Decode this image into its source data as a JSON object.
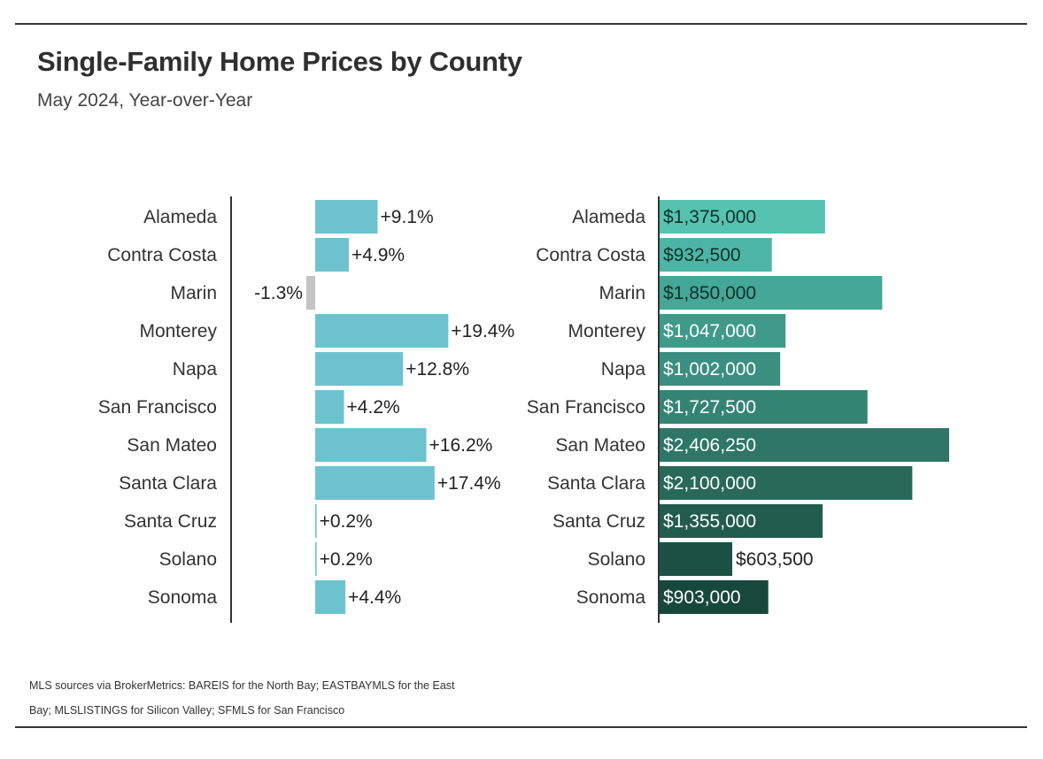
{
  "header": {
    "title": "Single-Family Home Prices by County",
    "subtitle": "May 2024, Year-over-Year"
  },
  "footer": {
    "source_line1": "MLS sources via BrokerMetrics: BAREIS for the North Bay; EASTBAYMLS for the East",
    "source_line2": "Bay; MLSLISTINGS for Silicon Valley; SFMLS for San Francisco"
  },
  "chart_data": [
    {
      "type": "bar",
      "orientation": "horizontal",
      "title": "",
      "categories": [
        "Alameda",
        "Contra Costa",
        "Marin",
        "Monterey",
        "Napa",
        "San Francisco",
        "San Mateo",
        "Santa Clara",
        "Santa Cruz",
        "Solano",
        "Sonoma"
      ],
      "values": [
        9.1,
        4.9,
        -1.3,
        19.4,
        12.8,
        4.2,
        16.2,
        17.4,
        0.2,
        0.2,
        4.4
      ],
      "data_labels": [
        "+9.1%",
        "+4.9%",
        "-1.3%",
        "+19.4%",
        "+12.8%",
        "+4.2%",
        "+16.2%",
        "+17.4%",
        "+0.2%",
        "+0.2%",
        "+4.4%"
      ],
      "unit": "%",
      "colors": {
        "positive": "#6cc3cf",
        "negative": "#c4c4c4"
      },
      "grid": false
    },
    {
      "type": "bar",
      "orientation": "horizontal",
      "title": "",
      "categories": [
        "Alameda",
        "Contra Costa",
        "Marin",
        "Monterey",
        "Napa",
        "San Francisco",
        "San Mateo",
        "Santa Clara",
        "Santa Cruz",
        "Solano",
        "Sonoma"
      ],
      "values": [
        1375000,
        932500,
        1850000,
        1047000,
        1002000,
        1727500,
        2406250,
        2100000,
        1355000,
        603500,
        903000
      ],
      "data_labels": [
        "$1,375,000",
        "$932,500",
        "$1,850,000",
        "$1,047,000",
        "$1,002,000",
        "$1,727,500",
        "$2,406,250",
        "$2,100,000",
        "$1,355,000",
        "$603,500",
        "$903,000"
      ],
      "colors": [
        "#55c3b0",
        "#4db5a6",
        "#44a797",
        "#3f9a8a",
        "#3a8f80",
        "#348474",
        "#2e7666",
        "#28695a",
        "#225c4f",
        "#1c5044",
        "#18473c"
      ],
      "grid": false
    }
  ]
}
